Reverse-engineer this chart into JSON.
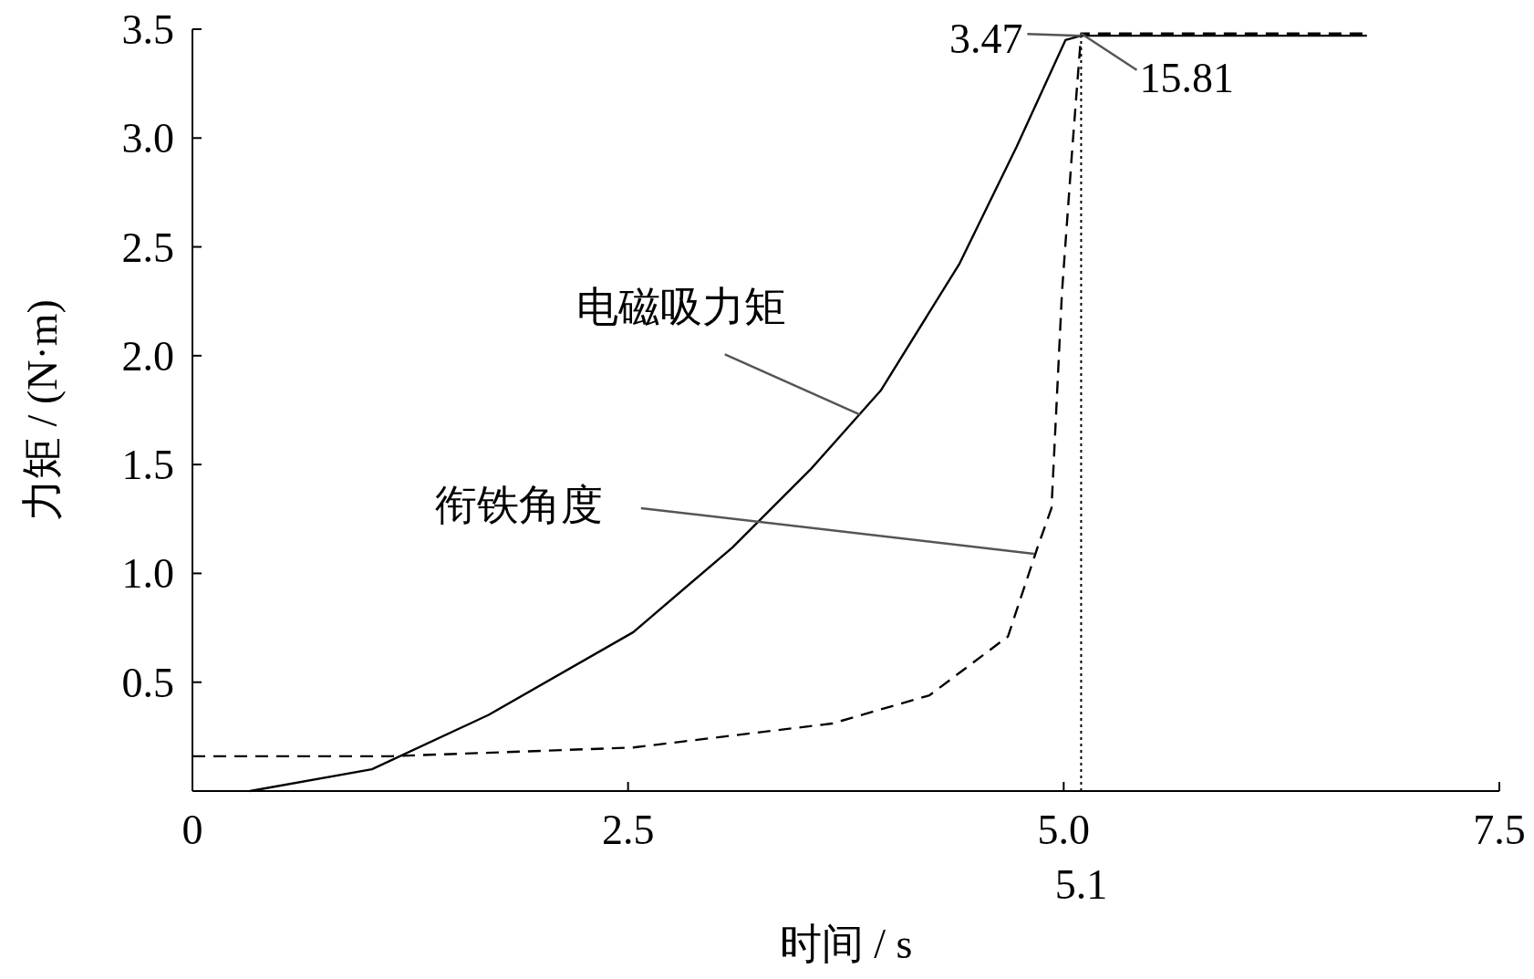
{
  "chart_data": {
    "type": "line",
    "xlabel": "时间 / s",
    "ylabel": "力矩 / (N·m)",
    "xlim": [
      0,
      7.5
    ],
    "ylim": [
      0,
      3.5
    ],
    "xticks": [
      0,
      {
        "value": 2.5,
        "label": "2.5"
      },
      {
        "value": 5.0,
        "label": "5.0"
      },
      {
        "value": 7.5,
        "label": "7.5"
      }
    ],
    "yticks": [
      {
        "value": 0.5,
        "label": "0.5"
      },
      {
        "value": 1.0,
        "label": "1.0"
      },
      {
        "value": 1.5,
        "label": "1.5"
      },
      {
        "value": 2.0,
        "label": "2.0"
      },
      {
        "value": 2.5,
        "label": "2.5"
      },
      {
        "value": 3.0,
        "label": "3.0"
      },
      {
        "value": 3.5,
        "label": "3.5"
      }
    ],
    "series": [
      {
        "color": "#000000",
        "line_style": "solid",
        "x": [
          0.33,
          1.03,
          1.7,
          2.53,
          3.1,
          3.55,
          3.95,
          4.4,
          4.73,
          5.01,
          5.1,
          6.74
        ],
        "values": [
          0,
          0.1,
          0.35,
          0.73,
          1.12,
          1.48,
          1.84,
          2.42,
          2.96,
          3.45,
          3.47,
          3.47
        ]
      },
      {
        "color": "#000000",
        "line_style": "dashed",
        "x": [
          0,
          1.14,
          2.53,
          3.67,
          4.23,
          4.68,
          4.85,
          4.93,
          4.99,
          5.05,
          5.1,
          6.74
        ],
        "values": [
          0.16,
          0.16,
          0.2,
          0.31,
          0.44,
          0.71,
          1.12,
          1.3,
          2.29,
          2.96,
          3.48,
          3.48
        ]
      }
    ],
    "ref_lines": [
      {
        "axis": "x",
        "value": 5.1,
        "label": "5.1",
        "line_style": "dotted",
        "color": "#000000"
      }
    ],
    "annotations": [
      {
        "text": "电磁吸力矩",
        "x": 3.83,
        "y": 1.73
      },
      {
        "text": "衔铁角度",
        "x": 4.83,
        "y": 1.09
      },
      {
        "text": "3.47",
        "x": 5.1,
        "y": 3.47
      },
      {
        "text": "15.81",
        "x": 5.1,
        "y": 3.48
      }
    ]
  }
}
